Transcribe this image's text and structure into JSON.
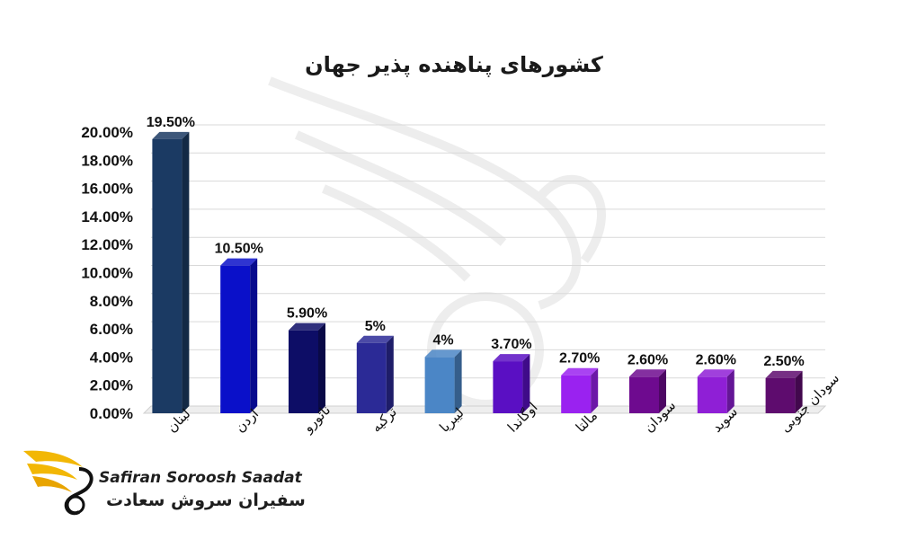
{
  "chart_data": {
    "type": "bar",
    "title": "کشورهای پناهنده پذیر جهان",
    "categories": [
      "لبنان",
      "اردن",
      "نائورو",
      "ترکیه",
      "لیبریا",
      "اوگاندا",
      "مالتا",
      "سودان",
      "سوید",
      "سودان جنوبی"
    ],
    "values": [
      19.5,
      10.5,
      5.9,
      5.0,
      4.0,
      3.7,
      2.7,
      2.6,
      2.6,
      2.5
    ],
    "data_labels": [
      "19.50%",
      "10.50%",
      "5.90%",
      "5%",
      "4%",
      "3.70%",
      "2.70%",
      "2.60%",
      "2.60%",
      "2.50%"
    ],
    "ylim": [
      0,
      20
    ],
    "yticks": [
      0,
      2,
      4,
      6,
      8,
      10,
      12,
      14,
      16,
      18,
      20
    ],
    "ytick_labels": [
      "0.00%",
      "2.00%",
      "4.00%",
      "6.00%",
      "8.00%",
      "10.00%",
      "12.00%",
      "14.00%",
      "16.00%",
      "18.00%",
      "20.00%"
    ],
    "grid": true,
    "bar_colors": [
      "#1b3a63",
      "#0a10c9",
      "#0d0d66",
      "#2b2a96",
      "#4b86c6",
      "#5a0fc3",
      "#9a22f0",
      "#6e0a8f",
      "#8f1fd6",
      "#5e0c6e"
    ]
  },
  "logo": {
    "brand_en": "Safiran Soroosh Saadat",
    "brand_fa": "سفیران سروش سعادت"
  }
}
